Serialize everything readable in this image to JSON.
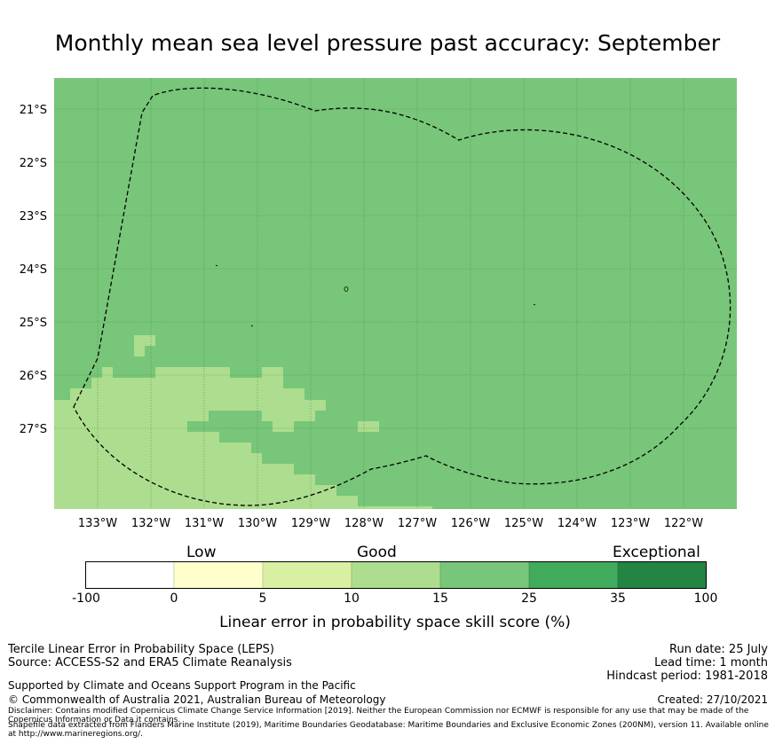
{
  "title": "Monthly mean sea level pressure past accuracy: September",
  "map": {
    "lat_labels": [
      "21°S",
      "22°S",
      "23°S",
      "24°S",
      "25°S",
      "26°S",
      "27°S"
    ],
    "lon_labels": [
      "133°W",
      "132°W",
      "131°W",
      "130°W",
      "129°W",
      "128°W",
      "127°W",
      "126°W",
      "125°W",
      "124°W",
      "123°W",
      "122°W"
    ],
    "base_color": "#78c679",
    "low_color": "#addd8e",
    "boundary_style": "dashed black line (EEZ)"
  },
  "colorbar": {
    "category_labels": [
      "Low",
      "Good",
      "Exceptional"
    ],
    "ticks": [
      "-100",
      "0",
      "5",
      "10",
      "15",
      "25",
      "35",
      "100"
    ],
    "colors": [
      "#ffffff",
      "#ffffcc",
      "#d9f0a3",
      "#addd8e",
      "#78c679",
      "#41ab5d",
      "#238443"
    ],
    "axis_label": "Linear error in probability space skill score (%)"
  },
  "footer": {
    "left_line1": "Tercile Linear Error in Probability Space (LEPS)",
    "left_line2": "Source: ACCESS-S2 and ERA5 Climate Reanalysis",
    "supported": "Supported by Climate and Oceans Support Program in the Pacific",
    "copyright": "© Commonwealth of Australia 2021, Australian Bureau of Meteorology",
    "disclaimer": "Disclaimer: Contains modified Copernicus Climate Change Service Information [2019]. Neither the European Commission nor ECMWF is responsible for any use that may be made of the Copernicus Information or Data it contains.",
    "shapefile": "Shapefile data extracted from Flanders Marine Institute (2019), Maritime Boundaries Geodatabase: Maritime Boundaries and Exclusive Economic Zones (200NM), version 11. Available online at http://www.marineregions.org/.",
    "run_date": "Run date: 25 July",
    "lead_time": "Lead time: 1 month",
    "hindcast": "Hindcast period: 1981-2018",
    "created": "Created: 27/10/2021"
  }
}
